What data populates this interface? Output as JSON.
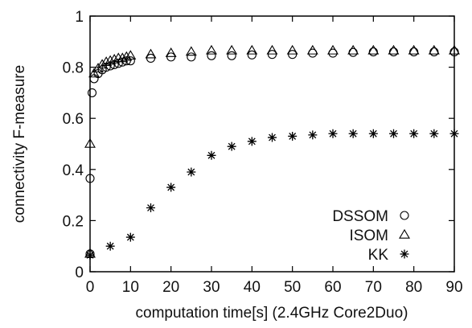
{
  "chart_data": {
    "type": "scatter",
    "title": "",
    "xlabel": "computation time[s] (2.4GHz Core2Duo)",
    "ylabel": "connectivity F-measure",
    "xlim": [
      0,
      90
    ],
    "ylim": [
      0,
      1
    ],
    "x_ticks": [
      "0",
      "10",
      "20",
      "30",
      "40",
      "50",
      "60",
      "70",
      "80",
      "90"
    ],
    "y_ticks": [
      "0",
      "0.2",
      "0.4",
      "0.6",
      "0.8",
      "1"
    ],
    "grid": false,
    "legend_position": "bottom-right",
    "series": [
      {
        "name": "DSSOM",
        "marker": "circle",
        "x": [
          0,
          0,
          0.5,
          1,
          2,
          3,
          4,
          5,
          6,
          7,
          8,
          9,
          10,
          15,
          20,
          25,
          30,
          35,
          40,
          45,
          50,
          55,
          60,
          65,
          70,
          75,
          80,
          85,
          90
        ],
        "y": [
          0.07,
          0.365,
          0.7,
          0.755,
          0.775,
          0.79,
          0.8,
          0.805,
          0.81,
          0.815,
          0.82,
          0.825,
          0.825,
          0.835,
          0.84,
          0.84,
          0.845,
          0.845,
          0.848,
          0.85,
          0.85,
          0.855,
          0.855,
          0.858,
          0.86,
          0.86,
          0.86,
          0.86,
          0.86
        ]
      },
      {
        "name": "ISOM",
        "marker": "triangle",
        "x": [
          0,
          0,
          1,
          2,
          3,
          4,
          5,
          6,
          7,
          8,
          9,
          10,
          15,
          20,
          25,
          30,
          35,
          40,
          45,
          50,
          55,
          60,
          65,
          70,
          75,
          80,
          85,
          90
        ],
        "y": [
          0.07,
          0.5,
          0.775,
          0.795,
          0.81,
          0.82,
          0.825,
          0.83,
          0.835,
          0.835,
          0.84,
          0.845,
          0.85,
          0.855,
          0.86,
          0.865,
          0.865,
          0.865,
          0.865,
          0.865,
          0.865,
          0.865,
          0.865,
          0.865,
          0.865,
          0.865,
          0.865,
          0.865
        ]
      },
      {
        "name": "KK",
        "marker": "star",
        "x": [
          0,
          5,
          10,
          15,
          20,
          25,
          30,
          35,
          40,
          45,
          50,
          55,
          60,
          65,
          70,
          75,
          80,
          85,
          90
        ],
        "y": [
          0.065,
          0.1,
          0.135,
          0.25,
          0.33,
          0.39,
          0.455,
          0.49,
          0.51,
          0.525,
          0.53,
          0.535,
          0.54,
          0.54,
          0.54,
          0.54,
          0.54,
          0.54,
          0.54
        ]
      }
    ]
  }
}
